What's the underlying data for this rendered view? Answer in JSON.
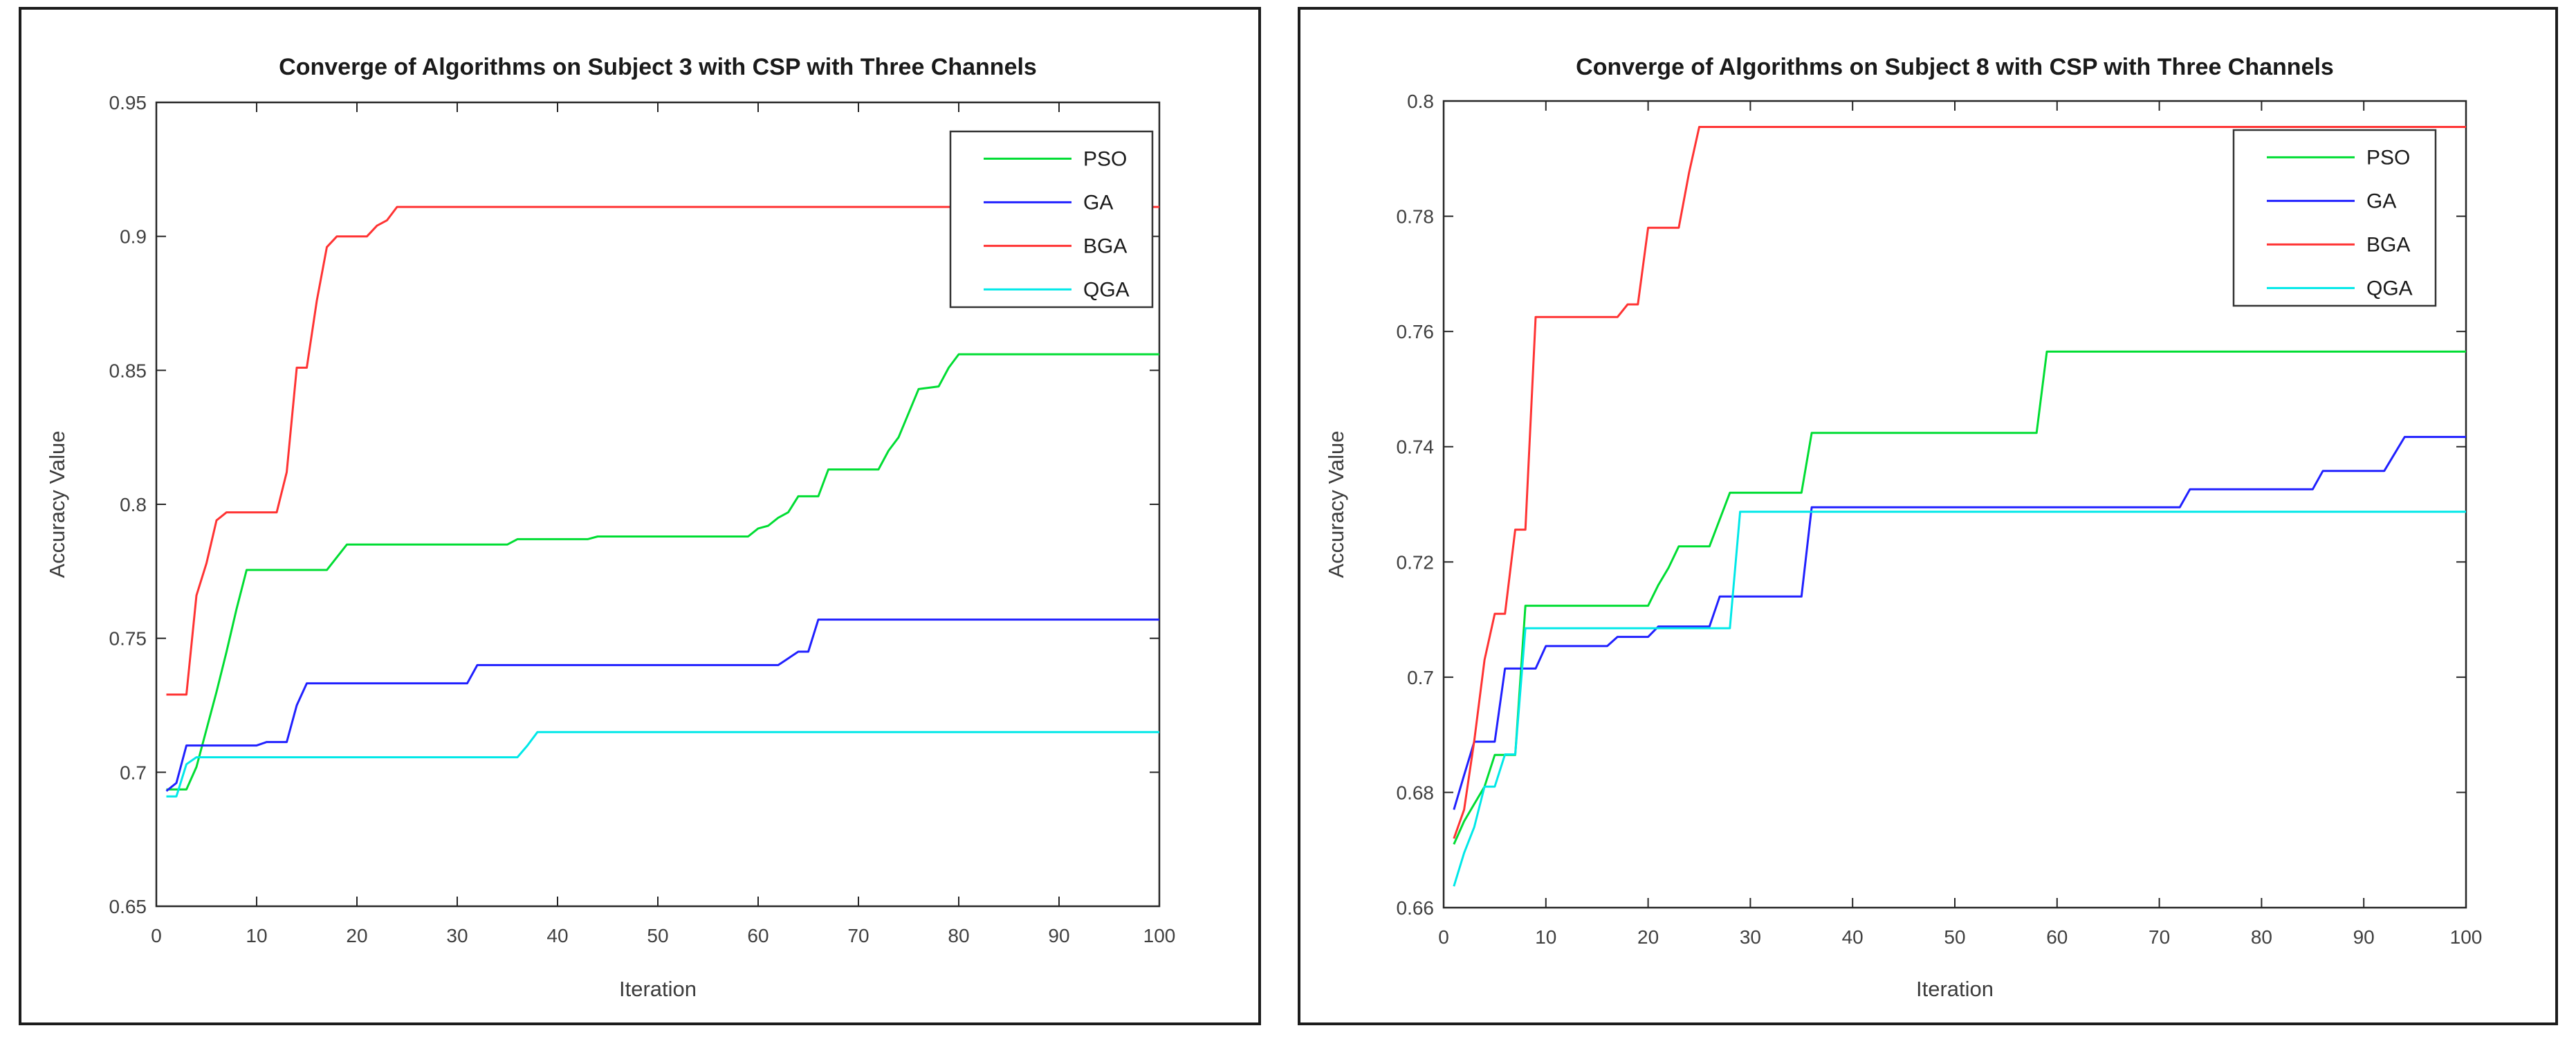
{
  "page": {
    "background_color": "#ffffff",
    "axis_color": "#262626",
    "tick_label_color": "#404040",
    "title_color": "#1a1a1a"
  },
  "chart_data": [
    {
      "type": "line",
      "title": "Converge of Algorithms on Subject 3 with CSP with Three Channels",
      "xlabel": "Iteration",
      "ylabel": "Accuracy Value",
      "xlim": [
        0,
        100
      ],
      "ylim": [
        0.65,
        0.95
      ],
      "xticks": [
        0,
        10,
        20,
        30,
        40,
        50,
        60,
        70,
        80,
        90,
        100
      ],
      "yticks": [
        0.65,
        0.7,
        0.75,
        0.8,
        0.85,
        0.9,
        0.95
      ],
      "grid": false,
      "legend_position": "top-right",
      "legend": [
        "PSO",
        "GA",
        "BGA",
        "QGA"
      ],
      "series": [
        {
          "name": "PSO",
          "color": "#00dd33",
          "points": [
            [
              1,
              0.6936
            ],
            [
              3,
              0.6936
            ],
            [
              4,
              0.702
            ],
            [
              5,
              0.716
            ],
            [
              6,
              0.73
            ],
            [
              7,
              0.745
            ],
            [
              8,
              0.761
            ],
            [
              9,
              0.7755
            ],
            [
              17,
              0.7755
            ],
            [
              19,
              0.785
            ],
            [
              35,
              0.785
            ],
            [
              36,
              0.787
            ],
            [
              43,
              0.787
            ],
            [
              44,
              0.788
            ],
            [
              59,
              0.788
            ],
            [
              60,
              0.791
            ],
            [
              61,
              0.792
            ],
            [
              62,
              0.795
            ],
            [
              63,
              0.797
            ],
            [
              64,
              0.803
            ],
            [
              66,
              0.803
            ],
            [
              67,
              0.813
            ],
            [
              72,
              0.813
            ],
            [
              73,
              0.82
            ],
            [
              74,
              0.825
            ],
            [
              76,
              0.843
            ],
            [
              78,
              0.844
            ],
            [
              79,
              0.851
            ],
            [
              80,
              0.856
            ],
            [
              100,
              0.856
            ]
          ]
        },
        {
          "name": "GA",
          "color": "#2020ff",
          "points": [
            [
              1,
              0.693
            ],
            [
              2,
              0.696
            ],
            [
              3,
              0.71
            ],
            [
              10,
              0.71
            ],
            [
              11,
              0.7113
            ],
            [
              13,
              0.7113
            ],
            [
              14,
              0.725
            ],
            [
              15,
              0.7332
            ],
            [
              31,
              0.7332
            ],
            [
              32,
              0.74
            ],
            [
              62,
              0.74
            ],
            [
              63,
              0.7425
            ],
            [
              64,
              0.745
            ],
            [
              65,
              0.745
            ],
            [
              66,
              0.757
            ],
            [
              100,
              0.757
            ]
          ]
        },
        {
          "name": "BGA",
          "color": "#ff3333",
          "points": [
            [
              1,
              0.729
            ],
            [
              3,
              0.729
            ],
            [
              4,
              0.766
            ],
            [
              5,
              0.778
            ],
            [
              6,
              0.794
            ],
            [
              7,
              0.797
            ],
            [
              12,
              0.797
            ],
            [
              13,
              0.812
            ],
            [
              14,
              0.851
            ],
            [
              15,
              0.851
            ],
            [
              16,
              0.876
            ],
            [
              17,
              0.896
            ],
            [
              18,
              0.9
            ],
            [
              21,
              0.9
            ],
            [
              22,
              0.904
            ],
            [
              23,
              0.906
            ],
            [
              24,
              0.911
            ],
            [
              100,
              0.911
            ]
          ]
        },
        {
          "name": "QGA",
          "color": "#00e8e8",
          "points": [
            [
              1,
              0.691
            ],
            [
              2,
              0.691
            ],
            [
              3,
              0.703
            ],
            [
              4,
              0.7056
            ],
            [
              36,
              0.7056
            ],
            [
              37,
              0.71
            ],
            [
              38,
              0.715
            ],
            [
              100,
              0.715
            ]
          ]
        }
      ]
    },
    {
      "type": "line",
      "title": "Converge of Algorithms on Subject 8 with CSP with Three Channels",
      "xlabel": "Iteration",
      "ylabel": "Accuracy Value",
      "xlim": [
        0,
        100
      ],
      "ylim": [
        0.66,
        0.8
      ],
      "xticks": [
        0,
        10,
        20,
        30,
        40,
        50,
        60,
        70,
        80,
        90,
        100
      ],
      "yticks": [
        0.66,
        0.68,
        0.7,
        0.72,
        0.74,
        0.76,
        0.78,
        0.8
      ],
      "grid": false,
      "legend_position": "top-right",
      "legend": [
        "PSO",
        "GA",
        "BGA",
        "QGA"
      ],
      "series": [
        {
          "name": "PSO",
          "color": "#00dd33",
          "points": [
            [
              1,
              0.671
            ],
            [
              2,
              0.675
            ],
            [
              3,
              0.678
            ],
            [
              4,
              0.681
            ],
            [
              5,
              0.6865
            ],
            [
              7,
              0.6865
            ],
            [
              8,
              0.7124
            ],
            [
              20,
              0.7124
            ],
            [
              21,
              0.716
            ],
            [
              22,
              0.719
            ],
            [
              23,
              0.7227
            ],
            [
              26,
              0.7227
            ],
            [
              28,
              0.732
            ],
            [
              35,
              0.732
            ],
            [
              36,
              0.7424
            ],
            [
              58,
              0.7424
            ],
            [
              59,
              0.7565
            ],
            [
              100,
              0.7565
            ]
          ]
        },
        {
          "name": "GA",
          "color": "#2020ff",
          "points": [
            [
              1,
              0.677
            ],
            [
              2,
              0.683
            ],
            [
              3,
              0.6888
            ],
            [
              5,
              0.6888
            ],
            [
              6,
              0.7015
            ],
            [
              9,
              0.7015
            ],
            [
              10,
              0.7054
            ],
            [
              16,
              0.7054
            ],
            [
              17,
              0.707
            ],
            [
              20,
              0.707
            ],
            [
              21,
              0.7088
            ],
            [
              26,
              0.7088
            ],
            [
              27,
              0.714
            ],
            [
              35,
              0.714
            ],
            [
              36,
              0.7295
            ],
            [
              72,
              0.7295
            ],
            [
              73,
              0.7326
            ],
            [
              85,
              0.7326
            ],
            [
              86,
              0.7358
            ],
            [
              92,
              0.7358
            ],
            [
              94,
              0.7417
            ],
            [
              100,
              0.7417
            ]
          ]
        },
        {
          "name": "BGA",
          "color": "#ff3333",
          "points": [
            [
              1,
              0.672
            ],
            [
              2,
              0.677
            ],
            [
              3,
              0.689
            ],
            [
              4,
              0.703
            ],
            [
              5,
              0.711
            ],
            [
              6,
              0.711
            ],
            [
              7,
              0.7256
            ],
            [
              8,
              0.7256
            ],
            [
              9,
              0.7625
            ],
            [
              17,
              0.7625
            ],
            [
              18,
              0.7647
            ],
            [
              19,
              0.7647
            ],
            [
              20,
              0.778
            ],
            [
              23,
              0.778
            ],
            [
              24,
              0.7875
            ],
            [
              25,
              0.7955
            ],
            [
              100,
              0.7955
            ]
          ]
        },
        {
          "name": "QGA",
          "color": "#00e8e8",
          "points": [
            [
              1,
              0.6637
            ],
            [
              2,
              0.6695
            ],
            [
              3,
              0.674
            ],
            [
              4,
              0.681
            ],
            [
              5,
              0.681
            ],
            [
              6,
              0.6866
            ],
            [
              7,
              0.6866
            ],
            [
              8,
              0.7085
            ],
            [
              28,
              0.7085
            ],
            [
              29,
              0.7287
            ],
            [
              100,
              0.7287
            ]
          ]
        }
      ]
    }
  ]
}
